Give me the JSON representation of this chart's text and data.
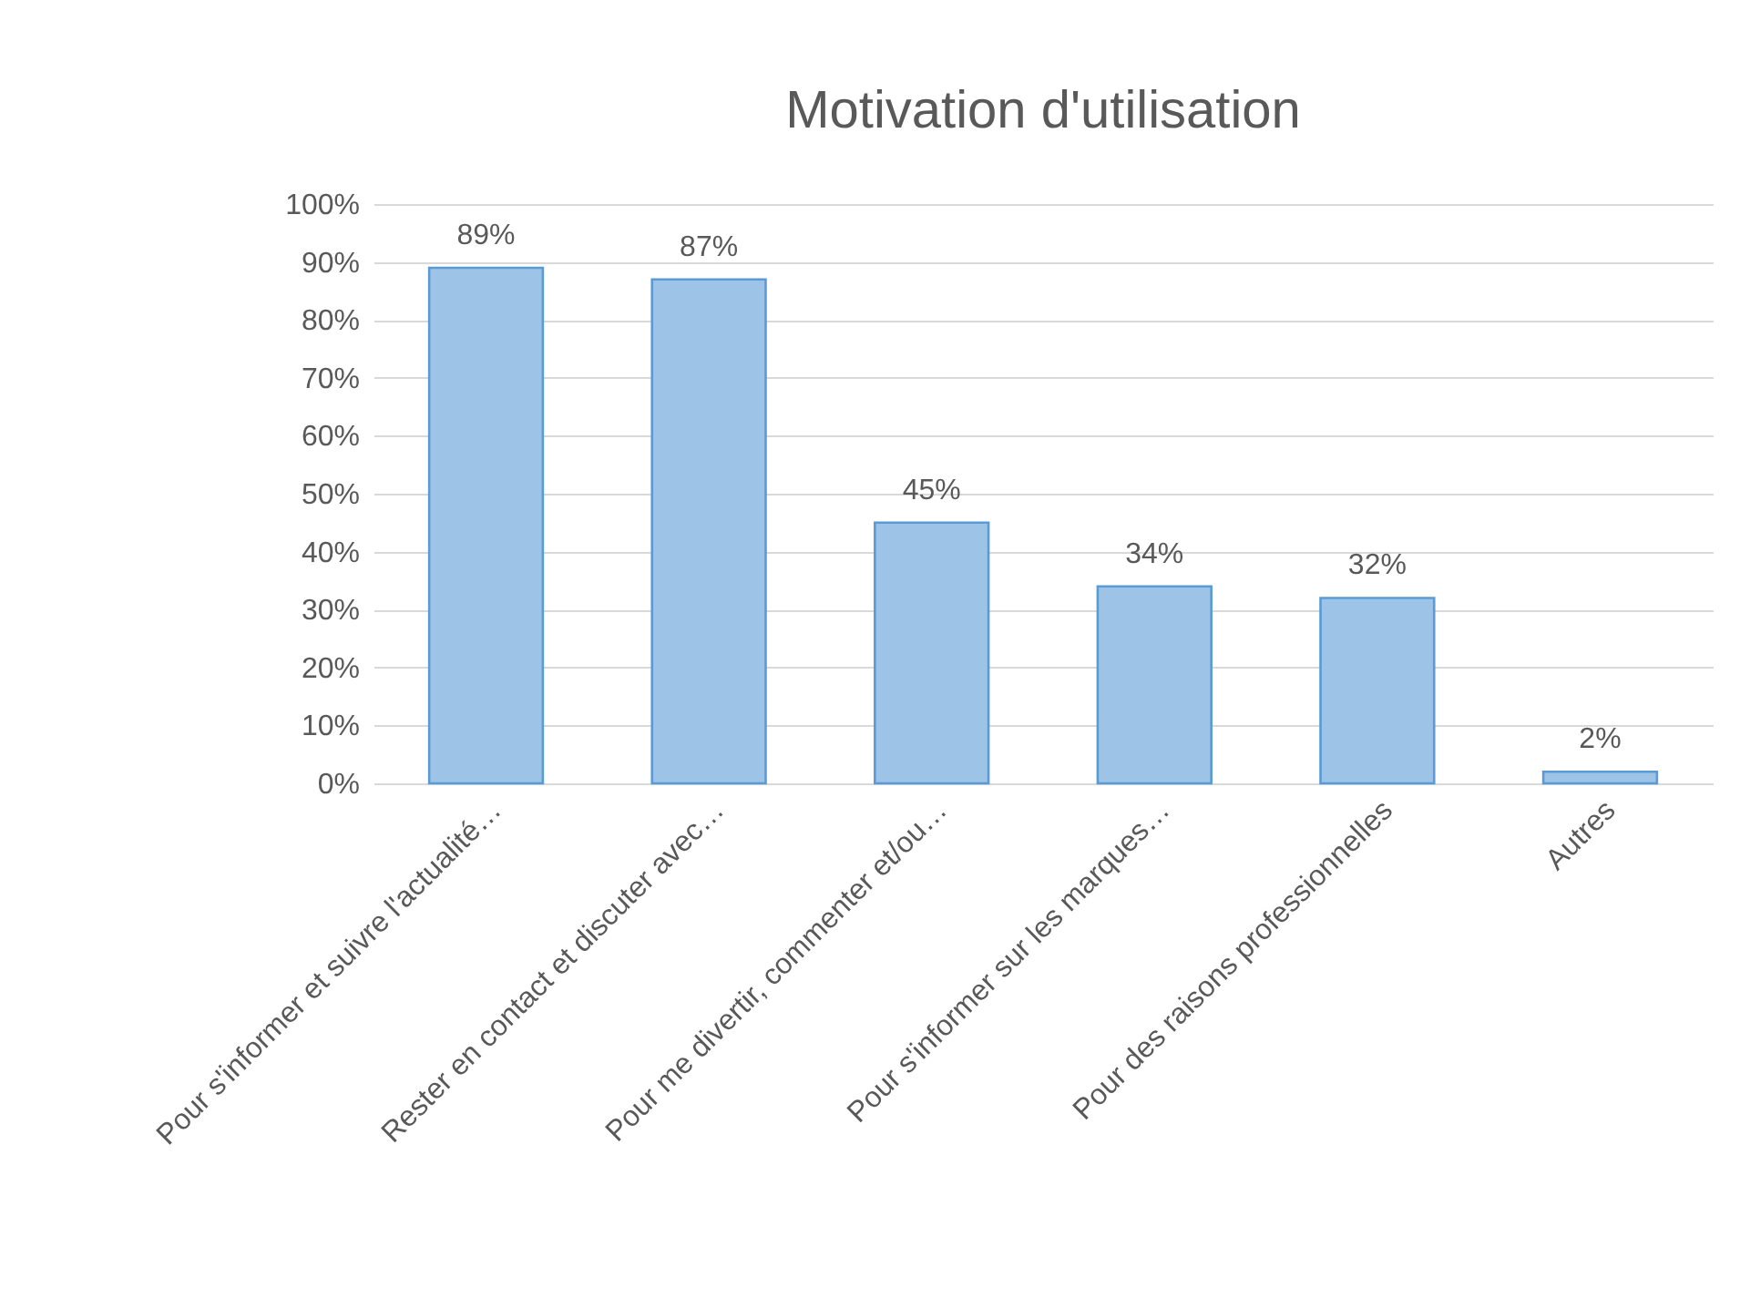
{
  "chart_data": {
    "type": "bar",
    "title": "Motivation d'utilisation",
    "categories": [
      "Pour s'informer et suivre l'actualité…",
      "Rester en contact et discuter avec…",
      "Pour me divertir, commenter et/ou…",
      "Pour s'informer sur les marques…",
      "Pour des raisons professionnelles",
      "Autres"
    ],
    "values": [
      89,
      87,
      45,
      34,
      32,
      2
    ],
    "value_labels": [
      "89%",
      "87%",
      "45%",
      "34%",
      "32%",
      "2%"
    ],
    "color": "#9dc3e6",
    "ylim": [
      0,
      100
    ],
    "yticks": [
      {
        "value": 0,
        "label": "0%"
      },
      {
        "value": 10,
        "label": "10%"
      },
      {
        "value": 20,
        "label": "20%"
      },
      {
        "value": 30,
        "label": "30%"
      },
      {
        "value": 40,
        "label": "40%"
      },
      {
        "value": 50,
        "label": "50%"
      },
      {
        "value": 60,
        "label": "60%"
      },
      {
        "value": 70,
        "label": "70%"
      },
      {
        "value": 80,
        "label": "80%"
      },
      {
        "value": 90,
        "label": "90%"
      },
      {
        "value": 100,
        "label": "100%"
      }
    ],
    "grid": "y"
  }
}
